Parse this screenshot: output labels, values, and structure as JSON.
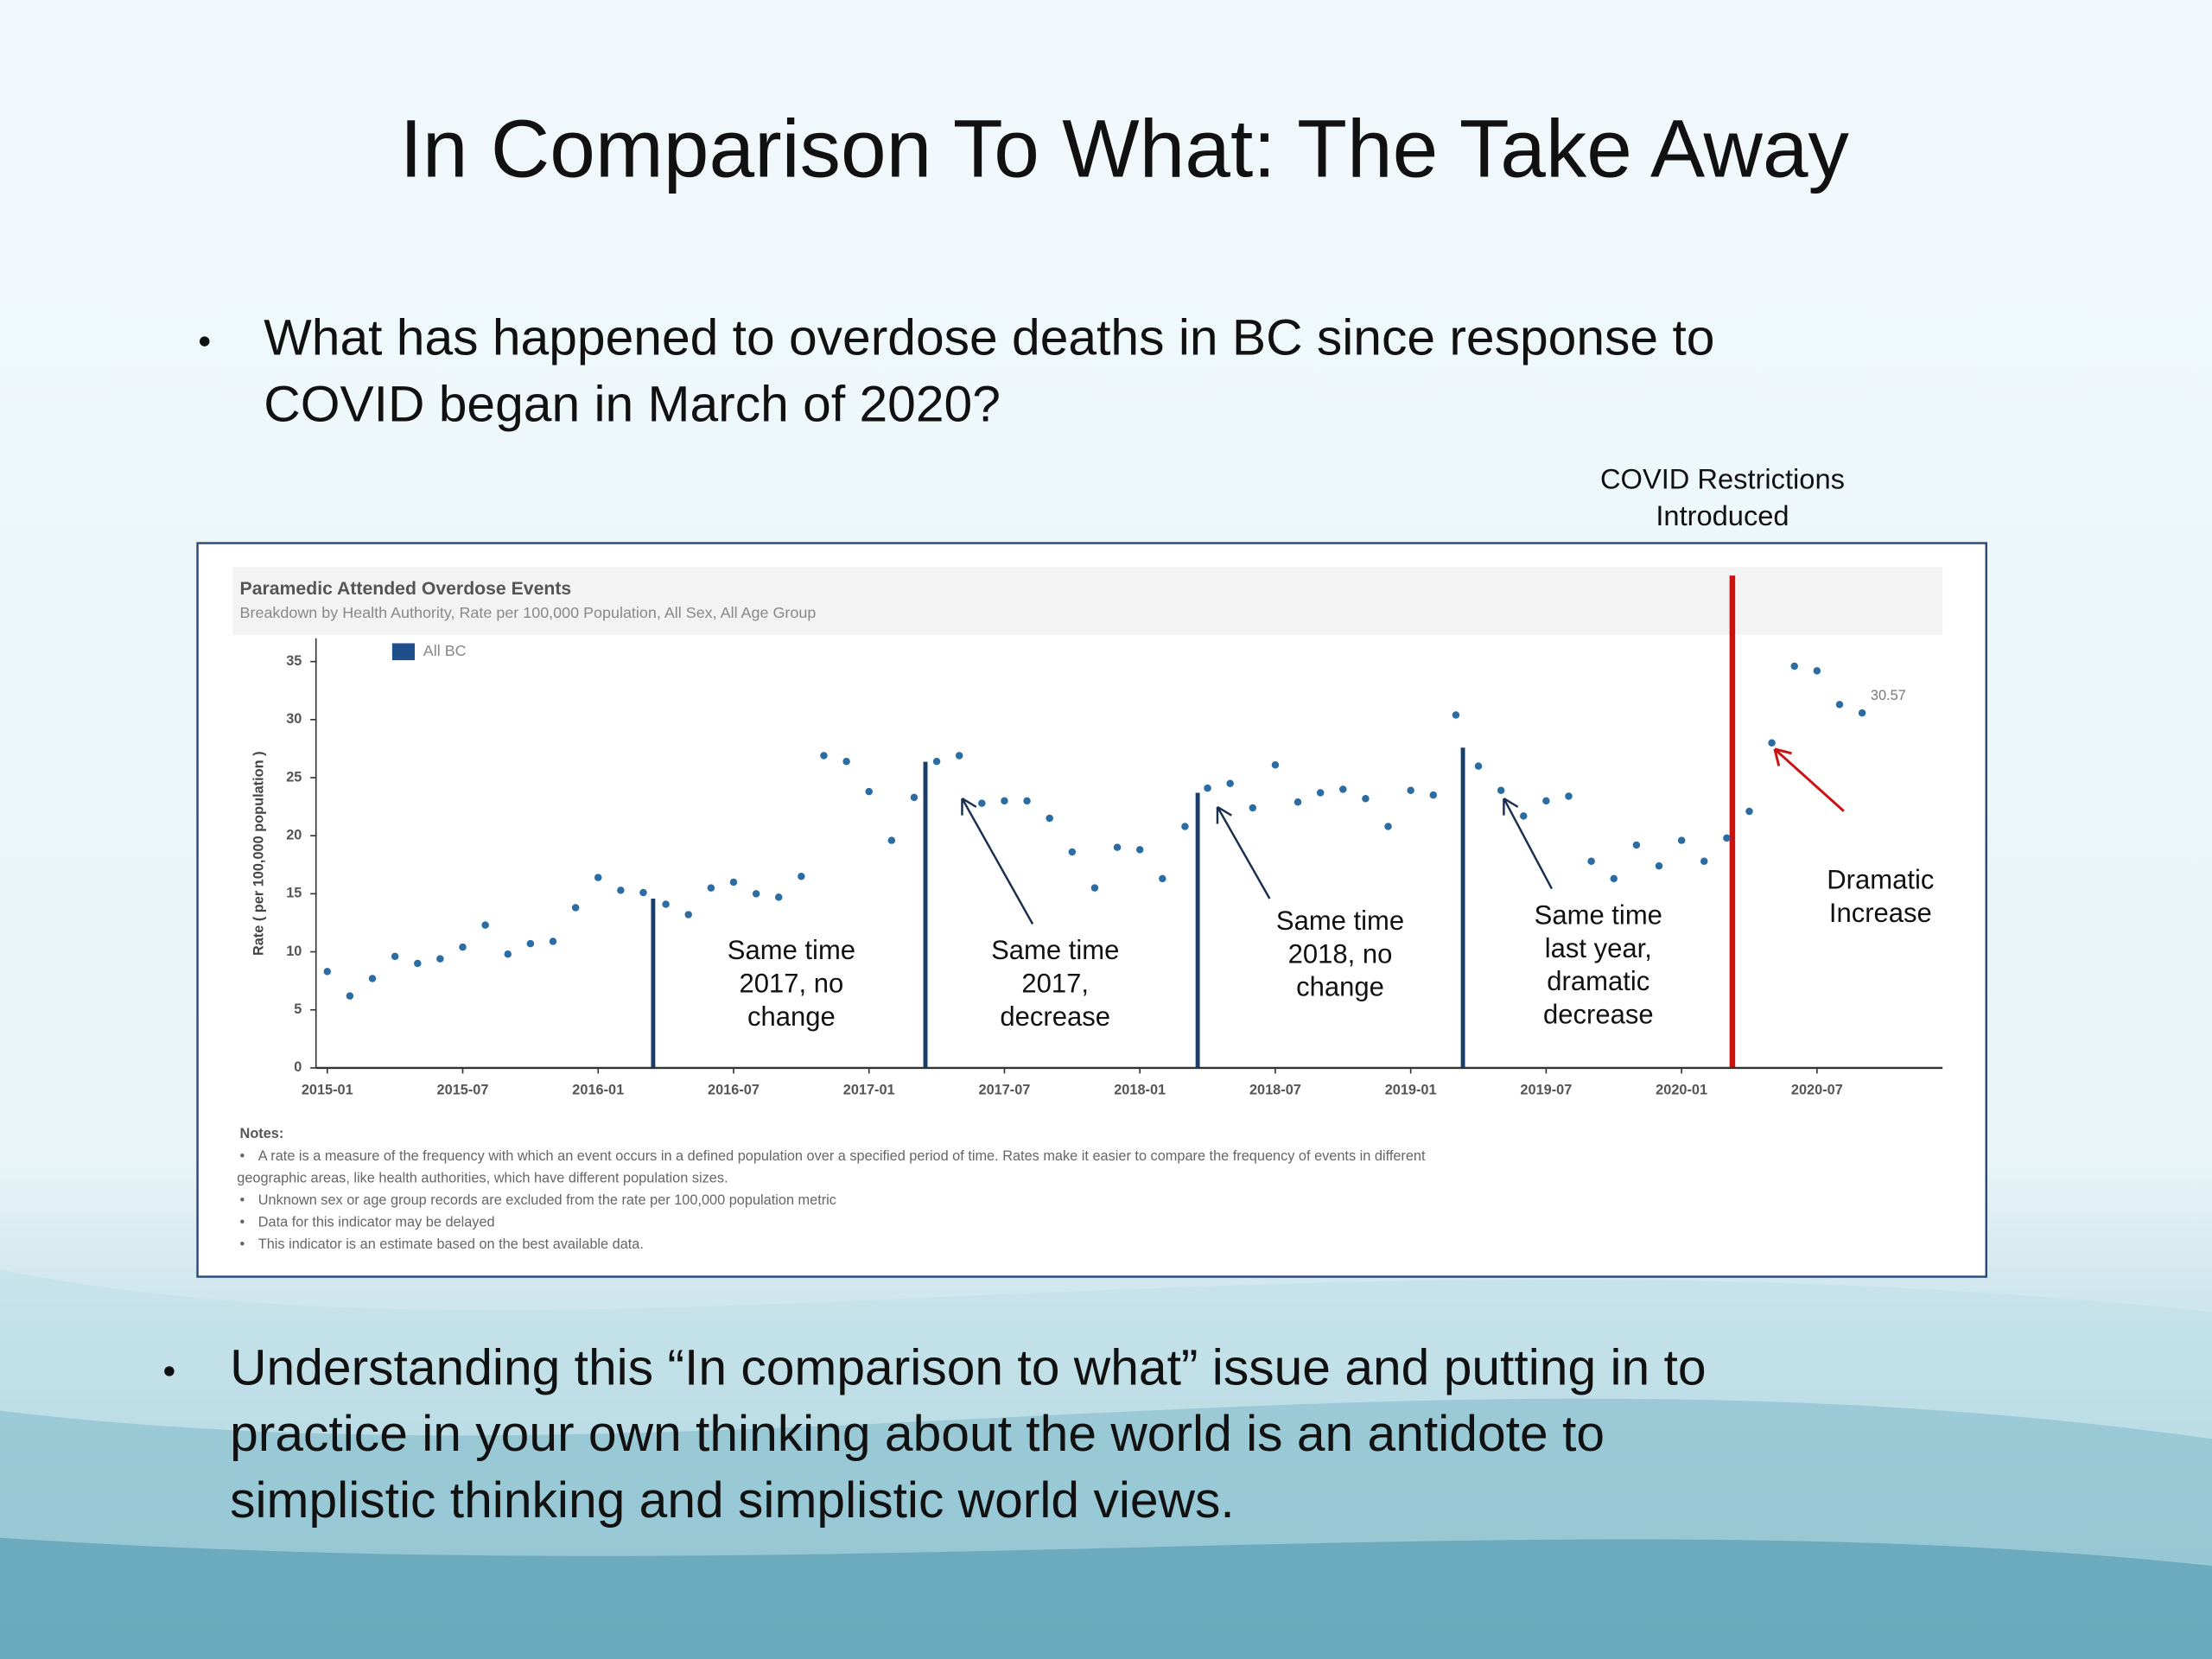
{
  "slide": {
    "title": "In Comparison To What: The Take Away",
    "bullets": [
      [
        "What has happened to overdose deaths in BC since response to",
        "COVID began in March of 2020?"
      ],
      [
        "Understanding this “In comparison to what” issue and putting in to",
        "practice in your own thinking about the world is an antidote to",
        "simplistic thinking and simplistic world views."
      ]
    ],
    "callout": [
      "COVID Restrictions",
      "Introduced"
    ]
  },
  "chart_data": {
    "type": "line",
    "title": "Paramedic Attended Overdose Events",
    "subtitle": "Breakdown by Health Authority, Rate per 100,000 Population,  All Sex,   All Age Group",
    "ylabel": "Rate ( per 100,000 population )",
    "categories": [
      "2015-01",
      null,
      null,
      null,
      null,
      null,
      "2015-07",
      null,
      null,
      null,
      null,
      null,
      "2016-01",
      null,
      null,
      null,
      null,
      null,
      "2016-07",
      null,
      null,
      null,
      null,
      null,
      "2017-01",
      null,
      null,
      null,
      null,
      null,
      "2017-07",
      null,
      null,
      null,
      null,
      null,
      "2018-01",
      null,
      null,
      null,
      null,
      null,
      "2018-07",
      null,
      null,
      null,
      null,
      null,
      "2019-01",
      null,
      null,
      null,
      null,
      null,
      "2019-07",
      null,
      null,
      null,
      null,
      null,
      "2020-01",
      null,
      null,
      null,
      null,
      null,
      "2020-07",
      null,
      null
    ],
    "series": [
      {
        "name": "All BC",
        "color": "#2b6ca3",
        "legend_color": "#1f4e8c",
        "values": [
          8.3,
          6.2,
          7.7,
          9.6,
          9.0,
          9.4,
          10.4,
          12.3,
          9.8,
          10.7,
          10.9,
          13.8,
          16.4,
          15.3,
          15.1,
          14.1,
          13.2,
          15.5,
          16.0,
          15.0,
          14.7,
          16.5,
          26.9,
          26.4,
          23.8,
          19.6,
          23.3,
          26.4,
          26.9,
          22.8,
          23.0,
          23.0,
          21.5,
          18.6,
          15.5,
          19.0,
          18.8,
          16.3,
          20.8,
          24.1,
          24.5,
          22.4,
          26.1,
          22.9,
          23.7,
          24.0,
          23.2,
          20.8,
          23.9,
          23.5,
          30.4,
          26.0,
          23.9,
          21.7,
          23.0,
          23.4,
          17.8,
          16.3,
          19.2,
          17.4,
          19.6,
          17.8,
          19.8,
          22.1,
          28.0,
          34.6,
          34.2,
          31.3,
          30.57
        ]
      }
    ],
    "ylim": [
      0,
      37
    ],
    "yticks": [
      0,
      5,
      10,
      15,
      20,
      25,
      30,
      35
    ],
    "annotations": [
      [
        "Same time",
        "2017, no",
        "change"
      ],
      [
        "Same time",
        "2017,",
        "decrease"
      ],
      [
        "Same time",
        "2018, no",
        "change"
      ],
      [
        "Same time",
        "last year,",
        "dramatic",
        "decrease"
      ],
      [
        "Dramatic",
        "Increase"
      ]
    ],
    "notes": {
      "heading": "Notes:",
      "items": [
        [
          "A rate  is a measure of the frequency with which an event occurs in a defined population over a specified period of time. Rates make it easier to compare the frequency of events in different",
          "geographic areas, like health authorities, which have different population sizes."
        ],
        [
          "Unknown sex or age group records are excluded from the rate per 100,000 population metric"
        ],
        [
          "Data for this indicator may be delayed"
        ],
        [
          "This indicator is an estimate based on the best available data."
        ]
      ]
    }
  }
}
